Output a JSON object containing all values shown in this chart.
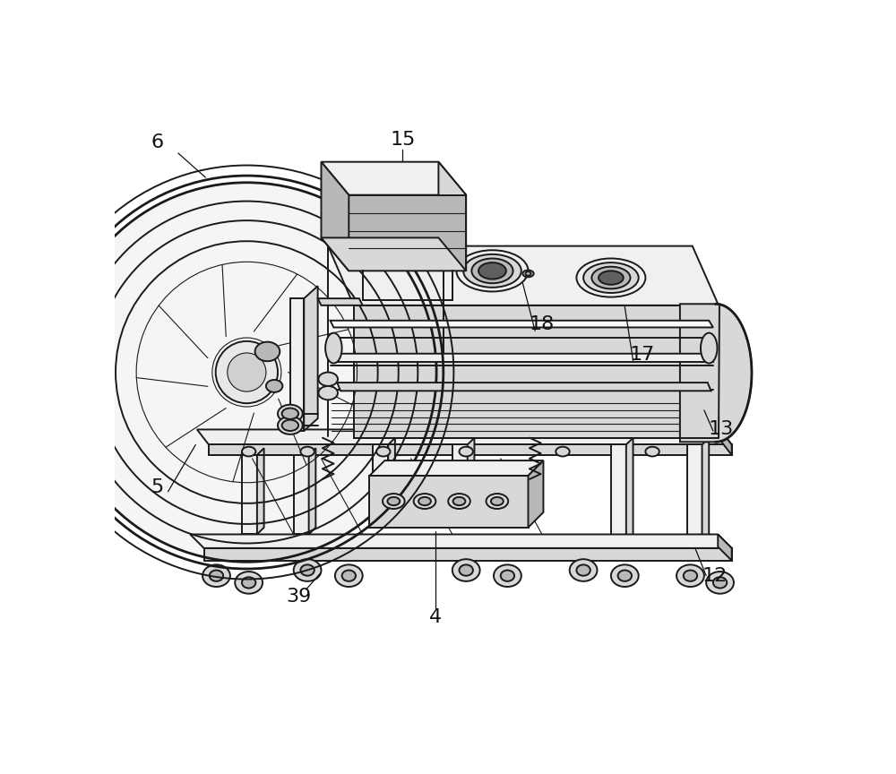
{
  "bg_color": "#ffffff",
  "line_color": "#1a1a1a",
  "label_color": "#111111",
  "lw_main": 1.4,
  "lw_thin": 0.8,
  "lw_thick": 2.0,
  "label_fontsize": 16,
  "figure_width": 10.0,
  "figure_height": 8.64,
  "shading": {
    "light": "#f0f0f0",
    "mid": "#d8d8d8",
    "dark": "#b8b8b8",
    "darker": "#989898",
    "white": "#f8f8f8"
  }
}
